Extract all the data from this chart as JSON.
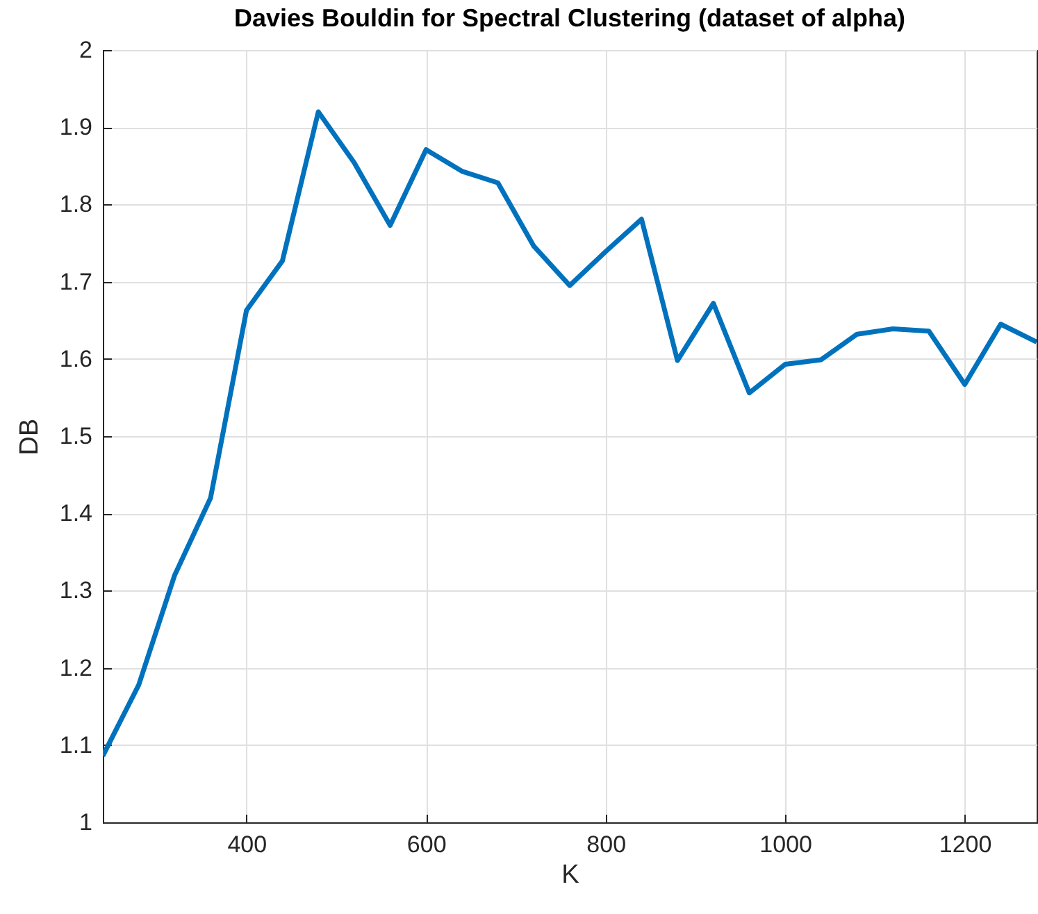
{
  "chart_data": {
    "type": "line",
    "title": "Davies Bouldin for Spectral Clustering (dataset of alpha)",
    "xlabel": "K",
    "ylabel": "DB",
    "x": [
      240,
      280,
      320,
      360,
      400,
      440,
      480,
      520,
      560,
      600,
      640,
      680,
      720,
      760,
      800,
      840,
      880,
      920,
      960,
      1000,
      1040,
      1080,
      1120,
      1160,
      1200,
      1240,
      1280
    ],
    "series": [
      {
        "color": "#0072bd",
        "values": [
          1.086,
          1.178,
          1.32,
          1.42,
          1.663,
          1.727,
          1.92,
          1.854,
          1.773,
          1.871,
          1.843,
          1.828,
          1.746,
          1.695,
          1.739,
          1.781,
          1.598,
          1.672,
          1.556,
          1.593,
          1.599,
          1.632,
          1.639,
          1.636,
          1.567,
          1.645,
          1.622
        ]
      }
    ],
    "xlim": [
      240,
      1280
    ],
    "xticks": [
      400,
      600,
      800,
      1000,
      1200
    ],
    "ylim": [
      1,
      2
    ],
    "yticks": [
      1,
      1.1,
      1.2,
      1.3,
      1.4,
      1.5,
      1.6,
      1.7,
      1.8,
      1.9,
      2
    ],
    "grid": true,
    "line_style": "solid",
    "marker": "none"
  }
}
